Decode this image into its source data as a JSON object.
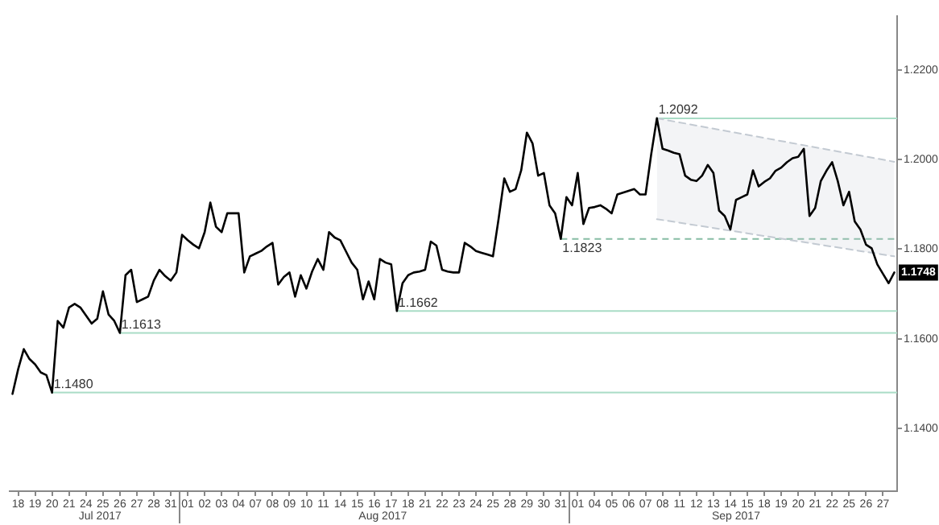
{
  "chart_data": {
    "type": "line",
    "marker": "none",
    "legend": false,
    "grid": false,
    "categories": [
      null,
      "18",
      null,
      null,
      "19",
      null,
      null,
      "20",
      null,
      null,
      "21",
      null,
      null,
      "24",
      null,
      null,
      "25",
      null,
      null,
      "26",
      null,
      null,
      "27",
      null,
      null,
      "28",
      null,
      null,
      "31",
      null,
      null,
      "01",
      null,
      null,
      "02",
      null,
      null,
      "03",
      null,
      null,
      "04",
      null,
      null,
      "07",
      null,
      null,
      "08",
      null,
      null,
      "09",
      null,
      null,
      "10",
      null,
      null,
      "11",
      null,
      null,
      "14",
      null,
      null,
      "15",
      null,
      null,
      "16",
      null,
      null,
      "17",
      null,
      null,
      "18",
      null,
      null,
      "21",
      null,
      null,
      "22",
      null,
      null,
      "23",
      null,
      null,
      "24",
      null,
      null,
      "25",
      null,
      null,
      "28",
      null,
      null,
      "29",
      null,
      null,
      "30",
      null,
      null,
      "31",
      null,
      null,
      "01",
      null,
      null,
      "04",
      null,
      null,
      "05",
      null,
      null,
      "06",
      null,
      null,
      "07",
      null,
      null,
      "08",
      null,
      null,
      "11",
      null,
      null,
      "12",
      null,
      null,
      "13",
      null,
      null,
      "14",
      null,
      null,
      "15",
      null,
      null,
      "18",
      null,
      null,
      "19",
      null,
      null,
      "20",
      null,
      null,
      "21",
      null,
      null,
      "22",
      null,
      null,
      "25",
      null,
      null,
      "26",
      null,
      null,
      "27",
      null,
      null
    ],
    "ylim": [
      1.126,
      1.232
    ],
    "yticks": [
      {
        "value": 1.14,
        "label": "1.1400"
      },
      {
        "value": 1.16,
        "label": "1.1600"
      },
      {
        "value": 1.18,
        "label": "1.1800"
      },
      {
        "value": 1.2,
        "label": "1.2000"
      },
      {
        "value": 1.22,
        "label": "1.2200"
      }
    ],
    "series": [
      {
        "type": "line",
        "color": "#000000",
        "values": [
          1.1477,
          1.1532,
          1.1577,
          1.1555,
          1.1543,
          1.1525,
          1.1519,
          1.148,
          1.164,
          1.1625,
          1.167,
          1.1678,
          1.167,
          1.1652,
          1.1634,
          1.1645,
          1.1706,
          1.1654,
          1.164,
          1.1613,
          1.1742,
          1.1754,
          1.1682,
          1.1688,
          1.1694,
          1.173,
          1.1754,
          1.174,
          1.173,
          1.1748,
          1.1832,
          1.182,
          1.181,
          1.1802,
          1.1838,
          1.1904,
          1.185,
          1.1838,
          1.188,
          1.188,
          1.188,
          1.1748,
          1.1784,
          1.179,
          1.1796,
          1.1806,
          1.1814,
          1.1721,
          1.1738,
          1.1748,
          1.1694,
          1.1742,
          1.1712,
          1.175,
          1.1778,
          1.1754,
          1.1838,
          1.1826,
          1.182,
          1.1795,
          1.177,
          1.1754,
          1.1688,
          1.1728,
          1.1688,
          1.1778,
          1.177,
          1.1766,
          1.1662,
          1.1724,
          1.1742,
          1.1748,
          1.175,
          1.1754,
          1.1817,
          1.1808,
          1.1754,
          1.175,
          1.1748,
          1.1748,
          1.1814,
          1.1806,
          1.1796,
          1.1792,
          1.1788,
          1.1784,
          1.1868,
          1.1958,
          1.1928,
          1.1934,
          1.1976,
          1.206,
          1.2036,
          1.1964,
          1.197,
          1.1898,
          1.188,
          1.1823,
          1.1916,
          1.1898,
          1.197,
          1.1856,
          1.1892,
          1.1894,
          1.1898,
          1.189,
          1.188,
          1.1922,
          1.1926,
          1.193,
          1.1934,
          1.1922,
          1.1922,
          1.2012,
          1.2092,
          1.2024,
          1.202,
          1.2015,
          1.2012,
          1.1964,
          1.1955,
          1.1952,
          1.1964,
          1.1988,
          1.197,
          1.1886,
          1.1874,
          1.1844,
          1.191,
          1.1916,
          1.1922,
          1.1976,
          1.194,
          1.195,
          1.1958,
          1.1975,
          1.1982,
          1.1994,
          1.2003,
          1.2006,
          1.2024,
          1.1874,
          1.1892,
          1.1952,
          1.1975,
          1.1994,
          1.1952,
          1.1898,
          1.1928,
          1.1862,
          1.1844,
          1.181,
          1.1802,
          1.1766,
          1.1745,
          1.1724,
          1.1748
        ]
      },
      {
        "type": "line",
        "color": "#c3cad2",
        "line_style": "dashed",
        "values": [
          null,
          null,
          null,
          null,
          null,
          null,
          null,
          null,
          null,
          null,
          null,
          null,
          null,
          null,
          null,
          null,
          null,
          null,
          null,
          null,
          null,
          null,
          null,
          null,
          null,
          null,
          null,
          null,
          null,
          null,
          null,
          null,
          null,
          null,
          null,
          null,
          null,
          null,
          null,
          null,
          null,
          null,
          null,
          null,
          null,
          null,
          null,
          null,
          null,
          null,
          null,
          null,
          null,
          null,
          null,
          null,
          null,
          null,
          null,
          null,
          null,
          null,
          null,
          null,
          null,
          null,
          null,
          null,
          null,
          null,
          null,
          null,
          null,
          null,
          null,
          null,
          null,
          null,
          null,
          null,
          null,
          null,
          null,
          null,
          null,
          null,
          null,
          null,
          null,
          null,
          null,
          null,
          null,
          null,
          null,
          null,
          null,
          null,
          null,
          null,
          null,
          null,
          null,
          null,
          null,
          null,
          null,
          null,
          null,
          null,
          null,
          null,
          null,
          null,
          null,
          null,
          null,
          null,
          null,
          null,
          null,
          null,
          null,
          null,
          null,
          null,
          null,
          null,
          null,
          null,
          null,
          null,
          null,
          null,
          null,
          null,
          null,
          null,
          null,
          null,
          null,
          null,
          null,
          null,
          null,
          null,
          null,
          null,
          null,
          null,
          null,
          null,
          null,
          null,
          null,
          null,
          null
        ],
        "lower": [
          null,
          null,
          null,
          null,
          null,
          null,
          null,
          null,
          null,
          null,
          null,
          null,
          null,
          null,
          null,
          null,
          null,
          null,
          null,
          null,
          null,
          null,
          null,
          null,
          null,
          null,
          null,
          null,
          null,
          null,
          null,
          null,
          null,
          null,
          null,
          null,
          null,
          null,
          null,
          null,
          null,
          null,
          null,
          null,
          null,
          null,
          null,
          null,
          null,
          null,
          null,
          null,
          null,
          null,
          null,
          null,
          null,
          null,
          null,
          null,
          null,
          null,
          null,
          null,
          null,
          null,
          null,
          null,
          null,
          null,
          null,
          null,
          null,
          null,
          null,
          null,
          null,
          null,
          null,
          null,
          null,
          null,
          null,
          null,
          null,
          null,
          null,
          null,
          null,
          null,
          null,
          null,
          null,
          null,
          null,
          null,
          null,
          null,
          null,
          null,
          null,
          null,
          null,
          null,
          null,
          null,
          null,
          null,
          null,
          null,
          null,
          null,
          null,
          null,
          1.1867,
          null,
          null,
          null,
          null,
          null,
          null,
          null,
          null,
          null,
          null,
          null,
          null,
          null,
          null,
          null,
          null,
          null,
          null,
          null,
          null,
          null,
          null,
          null,
          null,
          null,
          null,
          null,
          null,
          null,
          null,
          null,
          null,
          null,
          null,
          null,
          null,
          null,
          null,
          null,
          null,
          null,
          1.1784
        ],
        "upper": [
          null,
          null,
          null,
          null,
          null,
          null,
          null,
          null,
          null,
          null,
          null,
          null,
          null,
          null,
          null,
          null,
          null,
          null,
          null,
          null,
          null,
          null,
          null,
          null,
          null,
          null,
          null,
          null,
          null,
          null,
          null,
          null,
          null,
          null,
          null,
          null,
          null,
          null,
          null,
          null,
          null,
          null,
          null,
          null,
          null,
          null,
          null,
          null,
          null,
          null,
          null,
          null,
          null,
          null,
          null,
          null,
          null,
          null,
          null,
          null,
          null,
          null,
          null,
          null,
          null,
          null,
          null,
          null,
          null,
          null,
          null,
          null,
          null,
          null,
          null,
          null,
          null,
          null,
          null,
          null,
          null,
          null,
          null,
          null,
          null,
          null,
          null,
          null,
          null,
          null,
          null,
          null,
          null,
          null,
          null,
          null,
          null,
          null,
          null,
          null,
          null,
          null,
          null,
          null,
          null,
          null,
          null,
          null,
          null,
          null,
          null,
          null,
          null,
          null,
          1.2092,
          null,
          null,
          null,
          null,
          null,
          null,
          null,
          null,
          null,
          null,
          null,
          null,
          null,
          null,
          null,
          null,
          null,
          null,
          null,
          null,
          null,
          null,
          null,
          null,
          null,
          null,
          null,
          null,
          null,
          null,
          null,
          null,
          null,
          null,
          null,
          null,
          null,
          null,
          null,
          null,
          null,
          1.1995
        ]
      }
    ],
    "ref_lines": [
      {
        "axis": "y",
        "value": 1.2092,
        "label": "1.2092",
        "color": "#a9dcc6"
      },
      {
        "axis": "y",
        "value": 1.1823,
        "label": "1.1823",
        "color": "#86bca4",
        "line_style": "dashed"
      },
      {
        "axis": "y",
        "value": 1.1662,
        "label": "1.1662",
        "color": "#a9dcc6"
      },
      {
        "axis": "y",
        "value": 1.1613,
        "label": "1.1613",
        "color": "#a9dcc6"
      },
      {
        "axis": "y",
        "value": 1.148,
        "label": "1.1480",
        "color": "#a9dcc6"
      }
    ],
    "annotations": [
      {
        "text": "1.1748",
        "y": 1.1748
      },
      "Jul 2017",
      "Aug 2017",
      "Sep 2017"
    ]
  }
}
